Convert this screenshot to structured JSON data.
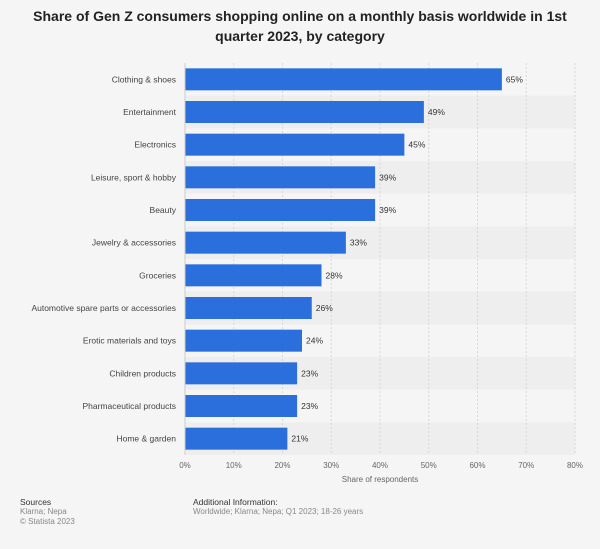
{
  "chart_data": {
    "type": "bar",
    "orientation": "horizontal",
    "title": "Share of Gen Z consumers shopping online on a monthly basis worldwide in 1st quarter 2023, by category",
    "xlabel": "Share of respondents",
    "ylabel": "",
    "categories": [
      "Clothing & shoes",
      "Entertainment",
      "Electronics",
      "Leisure, sport & hobby",
      "Beauty",
      "Jewelry & accessories",
      "Groceries",
      "Automotive spare parts or accessories",
      "Erotic materials and toys",
      "Children products",
      "Pharmaceutical products",
      "Home & garden"
    ],
    "values": [
      65,
      49,
      45,
      39,
      39,
      33,
      28,
      26,
      24,
      23,
      23,
      21
    ],
    "value_labels": [
      "65%",
      "49%",
      "45%",
      "39%",
      "39%",
      "33%",
      "28%",
      "26%",
      "24%",
      "23%",
      "23%",
      "21%"
    ],
    "xlim": [
      0,
      80
    ],
    "xticks": [
      0,
      10,
      20,
      30,
      40,
      50,
      60,
      70,
      80
    ],
    "xtick_labels": [
      "0%",
      "10%",
      "20%",
      "30%",
      "40%",
      "50%",
      "60%",
      "70%",
      "80%"
    ],
    "grid": true,
    "bar_color": "#2a6fdb"
  },
  "footer": {
    "sources_heading": "Sources",
    "sources_line1": "Klarna; Nepa",
    "sources_line2": "© Statista 2023",
    "additional_heading": "Additional Information:",
    "additional_text": "Worldwide; Klarna; Nepa; Q1 2023; 18-26 years"
  }
}
